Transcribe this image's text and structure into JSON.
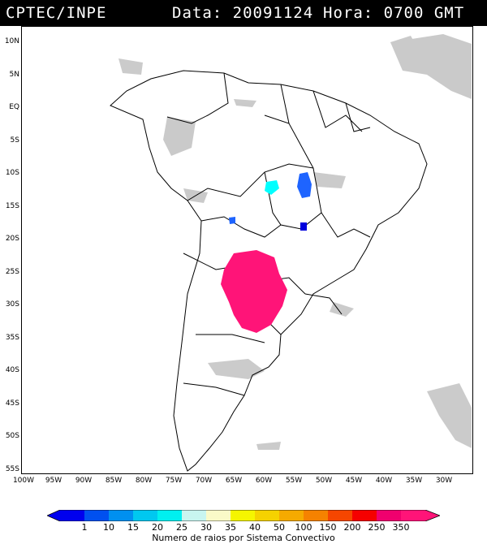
{
  "header": {
    "source": "CPTEC/INPE",
    "date_label": "Data: 20091124",
    "hour_label": "Hora: 0700 GMT"
  },
  "latitudes": [
    "10N",
    "5N",
    "EQ",
    "5S",
    "10S",
    "15S",
    "20S",
    "25S",
    "30S",
    "35S",
    "40S",
    "45S",
    "50S",
    "55S"
  ],
  "longitudes": [
    "100W",
    "95W",
    "90W",
    "85W",
    "80W",
    "75W",
    "70W",
    "65W",
    "60W",
    "55W",
    "50W",
    "45W",
    "40W",
    "35W",
    "30W"
  ],
  "legend": {
    "title": "Numero de raios por Sistema Convectivo",
    "labels": [
      "1",
      "10",
      "15",
      "20",
      "25",
      "30",
      "35",
      "40",
      "50",
      "100",
      "150",
      "200",
      "250",
      "350"
    ],
    "colors": [
      "#0000ee",
      "#0050f0",
      "#0090f0",
      "#00c8f0",
      "#00f0f0",
      "#c8f5f0",
      "#fafac8",
      "#f5f500",
      "#f5d200",
      "#f5aa00",
      "#f58200",
      "#f54600",
      "#f50000",
      "#f0006e",
      "#ff1478"
    ]
  },
  "overlays": {
    "cloud_color": "#c8c8c8",
    "storm_colors": {
      "cyan": "#00ffff",
      "blue": "#1e64ff",
      "dark_blue": "#0000dd",
      "magenta": "#ff1478"
    }
  }
}
